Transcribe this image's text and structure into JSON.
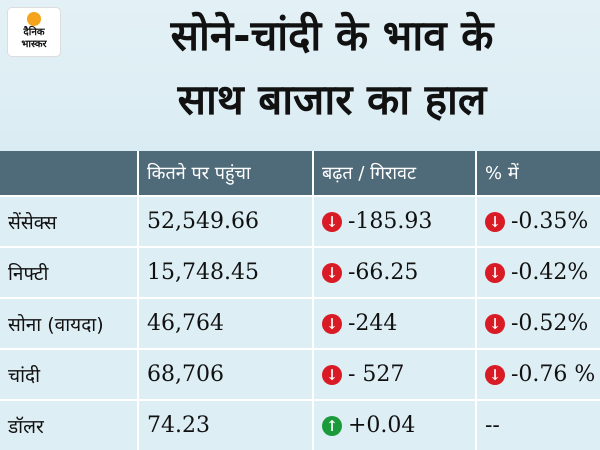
{
  "logo": {
    "line1": "दैनिक",
    "line2": "भास्कर"
  },
  "headline": {
    "line1": "सोने-चांदी के भाव के",
    "line2": "साथ बाजार का हाल"
  },
  "table": {
    "headers": [
      "",
      "कितने पर पहुंचा",
      "बढ़त / गिरावट",
      "% में"
    ],
    "rows": [
      {
        "name": "सेंसेक्स",
        "value": "52,549.66",
        "change": "-185.93",
        "change_dir": "down",
        "percent": "-0.35%",
        "percent_dir": "down"
      },
      {
        "name": "निफ्टी",
        "value": "15,748.45",
        "change": "-66.25",
        "change_dir": "down",
        "percent": "-0.42%",
        "percent_dir": "down"
      },
      {
        "name": "सोना (वायदा)",
        "value": "46,764",
        "change": "-244",
        "change_dir": "down",
        "percent": "-0.52%",
        "percent_dir": "down"
      },
      {
        "name": "चांदी",
        "value": "68,706",
        "change": "- 527",
        "change_dir": "down",
        "percent": "-0.76 %",
        "percent_dir": "down"
      },
      {
        "name": "डॉलर",
        "value": "74.23",
        "change": "+0.04",
        "change_dir": "up",
        "percent": "--",
        "percent_dir": "none"
      }
    ]
  },
  "colors": {
    "header_bg": "#4f6a78",
    "row_bg": "#ddeef4",
    "down": "#d81b24",
    "up": "#1b9a3c",
    "logo_sun": "#f5a31a"
  },
  "icons": {
    "down": "arrow-down-circle-icon",
    "up": "arrow-up-circle-icon"
  }
}
